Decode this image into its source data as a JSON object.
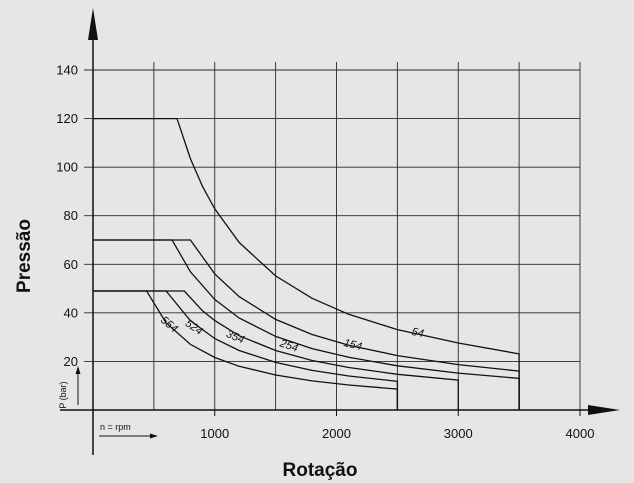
{
  "chart_data": {
    "type": "line",
    "xlabel": "Rotação",
    "ylabel": "Pressão",
    "x_unit_note": "n = rpm",
    "y_unit_note": "P (bar)",
    "xlim": [
      -250,
      4150
    ],
    "ylim": [
      -10,
      165
    ],
    "x_ticks": [
      1000,
      2000,
      3000,
      4000
    ],
    "y_ticks": [
      20,
      40,
      60,
      80,
      100,
      120,
      140
    ],
    "grid": true,
    "series": [
      {
        "name": "54",
        "points": [
          [
            -200,
            120
          ],
          [
            690,
            120
          ],
          [
            800,
            103.5
          ],
          [
            900,
            92
          ],
          [
            1000,
            82.8
          ],
          [
            1200,
            69
          ],
          [
            1500,
            55.2
          ],
          [
            1800,
            46
          ],
          [
            2100,
            39.4
          ],
          [
            2500,
            33.1
          ],
          [
            3000,
            27.6
          ],
          [
            3500,
            23.1
          ],
          [
            3500,
            0
          ]
        ]
      },
      {
        "name": "154",
        "points": [
          [
            -200,
            70
          ],
          [
            800,
            70
          ],
          [
            1000,
            56
          ],
          [
            1200,
            46.7
          ],
          [
            1500,
            37.3
          ],
          [
            1800,
            31.1
          ],
          [
            2100,
            26.7
          ],
          [
            2500,
            22.4
          ],
          [
            3000,
            18.7
          ],
          [
            3500,
            16
          ],
          [
            3500,
            0
          ]
        ]
      },
      {
        "name": "254",
        "points": [
          [
            -200,
            70
          ],
          [
            650,
            70
          ],
          [
            800,
            56.9
          ],
          [
            1000,
            45.5
          ],
          [
            1200,
            37.9
          ],
          [
            1500,
            30.3
          ],
          [
            1800,
            25.3
          ],
          [
            2100,
            21.7
          ],
          [
            2500,
            18.2
          ],
          [
            3000,
            15.2
          ],
          [
            3500,
            13
          ],
          [
            3500,
            0
          ]
        ]
      },
      {
        "name": "354",
        "points": [
          [
            -200,
            49
          ],
          [
            750,
            49
          ],
          [
            900,
            40.8
          ],
          [
            1000,
            36.8
          ],
          [
            1200,
            30.6
          ],
          [
            1500,
            24.5
          ],
          [
            1800,
            20.4
          ],
          [
            2100,
            17.5
          ],
          [
            2500,
            14.7
          ],
          [
            3000,
            12.3
          ],
          [
            3000,
            0
          ]
        ]
      },
      {
        "name": "524",
        "points": [
          [
            -200,
            49
          ],
          [
            600,
            49
          ],
          [
            800,
            36.8
          ],
          [
            1000,
            29.4
          ],
          [
            1200,
            24.5
          ],
          [
            1500,
            19.6
          ],
          [
            1800,
            16.3
          ],
          [
            2100,
            14
          ],
          [
            2500,
            11.8
          ],
          [
            2500,
            0
          ]
        ]
      },
      {
        "name": "554",
        "points": [
          [
            -200,
            49
          ],
          [
            440,
            49
          ],
          [
            600,
            35.9
          ],
          [
            800,
            27
          ],
          [
            1000,
            21.6
          ],
          [
            1200,
            18
          ],
          [
            1500,
            14.4
          ],
          [
            1800,
            12
          ],
          [
            2100,
            10.3
          ],
          [
            2500,
            8.6
          ],
          [
            2500,
            0
          ]
        ]
      }
    ],
    "curve_labels": [
      {
        "text": "54",
        "x": 1620,
        "y": 32,
        "rotate": 12
      },
      {
        "text": "154",
        "x": 1140,
        "y": 25,
        "rotate": 14
      },
      {
        "text": "254",
        "x": 580,
        "y": 24,
        "rotate": 18
      },
      {
        "text": "354",
        "x": 100,
        "y": 28,
        "rotate": 22
      },
      {
        "text": "524",
        "x": -270,
        "y": 31,
        "rotate": 35
      },
      {
        "text": "554",
        "x": -450,
        "y": 34,
        "rotate": 40
      }
    ]
  }
}
